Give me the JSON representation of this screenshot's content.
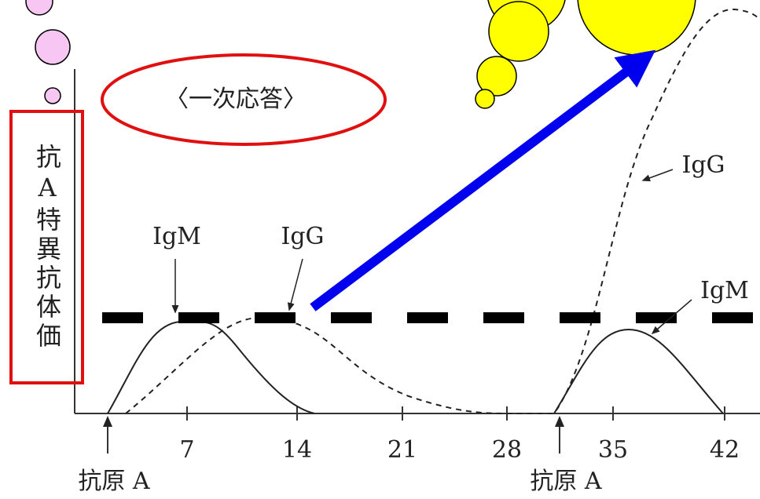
{
  "y_axis_label": "抗A特異抗体価",
  "phase_label": "〈一次応答〉",
  "x_ticks": [
    "7",
    "14",
    "21",
    "28",
    "35",
    "42"
  ],
  "antigen_labels": [
    "抗原 A",
    "抗原 A"
  ],
  "curve_labels": {
    "igm_first": "IgM",
    "igg_first": "IgG",
    "igg_second": "IgG",
    "igm_second": "IgM"
  }
}
